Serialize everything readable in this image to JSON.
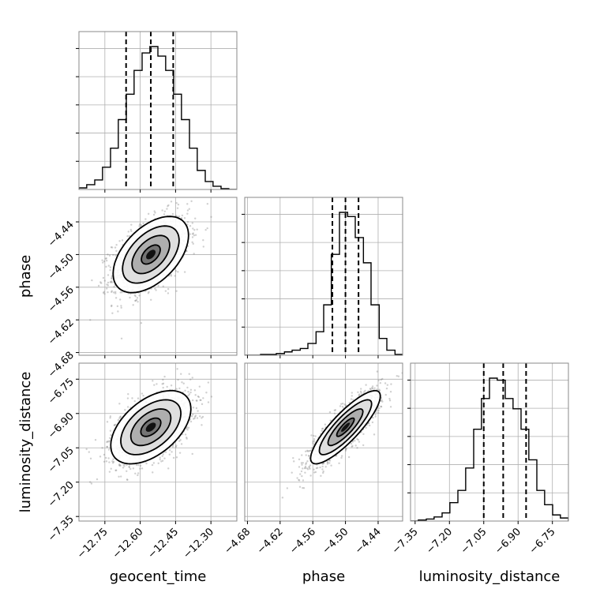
{
  "chart_data": {
    "type": "corner",
    "parameters": [
      "geocent_time",
      "phase",
      "luminosity_distance"
    ],
    "axis_labels": {
      "bottom": [
        "geocent_time",
        "phase",
        "luminosity_distance"
      ],
      "left": [
        "phase",
        "luminosity_distance"
      ]
    },
    "ranges": {
      "geocent_time": [
        -12.86,
        -12.19
      ],
      "phase": [
        -4.685,
        -4.395
      ],
      "luminosity_distance": [
        -7.37,
        -6.68
      ]
    },
    "ticks": {
      "geocent_time": [
        -12.75,
        -12.6,
        -12.45,
        -12.3
      ],
      "phase": [
        -4.68,
        -4.62,
        -4.56,
        -4.5,
        -4.44
      ],
      "luminosity_distance": [
        -7.35,
        -7.2,
        -7.05,
        -6.9,
        -6.75
      ]
    },
    "tick_labels": {
      "geocent_time": [
        "−12.75",
        "−12.60",
        "−12.45",
        "−12.30"
      ],
      "phase": [
        "−4.68",
        "−4.62",
        "−4.56",
        "−4.50",
        "−4.44"
      ],
      "luminosity_distance": [
        "−7.35",
        "−7.20",
        "−7.05",
        "−6.90",
        "−6.75"
      ]
    },
    "quantiles": {
      "geocent_time": [
        -12.66,
        -12.555,
        -12.46
      ],
      "phase": [
        -4.524,
        -4.5,
        -4.476
      ],
      "luminosity_distance": [
        -7.05,
        -6.965,
        -6.865
      ]
    },
    "histograms": {
      "geocent_time": {
        "edges": [
          -12.86,
          -12.827,
          -12.793,
          -12.76,
          -12.726,
          -12.693,
          -12.659,
          -12.626,
          -12.592,
          -12.559,
          -12.525,
          -12.492,
          -12.458,
          -12.425,
          -12.391,
          -12.358,
          -12.324,
          -12.291,
          -12.257,
          -12.224,
          -12.19
        ],
        "counts": [
          2,
          6,
          12,
          28,
          52,
          88,
          120,
          150,
          172,
          180,
          168,
          150,
          120,
          88,
          52,
          24,
          10,
          4,
          1,
          0
        ]
      },
      "phase": {
        "edges": [
          -4.685,
          -4.67,
          -4.656,
          -4.642,
          -4.627,
          -4.612,
          -4.598,
          -4.583,
          -4.569,
          -4.554,
          -4.54,
          -4.526,
          -4.511,
          -4.496,
          -4.482,
          -4.467,
          -4.453,
          -4.438,
          -4.424,
          -4.409,
          -4.395
        ],
        "counts": [
          0,
          0,
          1,
          1,
          2,
          4,
          6,
          8,
          14,
          28,
          60,
          120,
          170,
          165,
          140,
          110,
          60,
          20,
          6,
          1
        ]
      },
      "luminosity_distance": {
        "edges": [
          -7.37,
          -7.336,
          -7.301,
          -7.267,
          -7.232,
          -7.198,
          -7.163,
          -7.129,
          -7.094,
          -7.06,
          -7.025,
          -6.991,
          -6.956,
          -6.922,
          -6.887,
          -6.853,
          -6.818,
          -6.784,
          -6.749,
          -6.715,
          -6.68
        ],
        "counts": [
          0,
          1,
          2,
          4,
          8,
          18,
          30,
          52,
          90,
          120,
          140,
          138,
          120,
          110,
          90,
          60,
          30,
          16,
          6,
          3
        ]
      }
    },
    "pairs": [
      {
        "x": "geocent_time",
        "y": "phase",
        "mean": [
          -12.555,
          -4.5
        ],
        "std": [
          0.08,
          0.035
        ],
        "corr": 0.5
      },
      {
        "x": "geocent_time",
        "y": "luminosity_distance",
        "mean": [
          -12.555,
          -6.96
        ],
        "std": [
          0.085,
          0.08
        ],
        "corr": 0.5
      },
      {
        "x": "phase",
        "y": "luminosity_distance",
        "mean": [
          -4.5,
          -6.96
        ],
        "std": [
          0.032,
          0.08
        ],
        "corr": 0.85
      }
    ],
    "contour_levels_sigma": [
      0.5,
      1.0,
      1.5,
      2.0
    ],
    "grid": true,
    "quantile_line_style": "dashed"
  }
}
